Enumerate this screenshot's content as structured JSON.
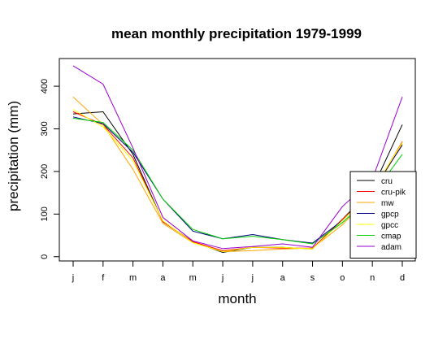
{
  "chart_data": {
    "type": "line",
    "title": "mean monthly precipitation 1979-1999",
    "xlabel": "month",
    "ylabel": "precipitation (mm)",
    "categories": [
      "j",
      "f",
      "m",
      "a",
      "m",
      "j",
      "j",
      "a",
      "s",
      "o",
      "n",
      "d"
    ],
    "ylim": [
      -10,
      465
    ],
    "yticks": [
      0,
      100,
      200,
      300,
      400
    ],
    "grid": false,
    "legend_position": "bottom-right",
    "series": [
      {
        "name": "cru",
        "color": "#000000",
        "values": [
          335,
          340,
          240,
          82,
          35,
          10,
          22,
          22,
          18,
          88,
          160,
          310
        ]
      },
      {
        "name": "cru-pik",
        "color": "#ff0000",
        "values": [
          340,
          310,
          232,
          82,
          35,
          14,
          22,
          20,
          20,
          88,
          152,
          270
        ]
      },
      {
        "name": "mw",
        "color": "#ffa500",
        "values": [
          375,
          310,
          205,
          78,
          33,
          12,
          14,
          18,
          20,
          75,
          148,
          265
        ]
      },
      {
        "name": "gpcp",
        "color": "#000080",
        "values": [
          328,
          312,
          245,
          135,
          60,
          42,
          52,
          40,
          32,
          85,
          155,
          262
        ]
      },
      {
        "name": "gpcc",
        "color": "#ffff00",
        "values": [
          345,
          305,
          225,
          84,
          33,
          12,
          22,
          22,
          18,
          85,
          155,
          268
        ]
      },
      {
        "name": "cmap",
        "color": "#00d000",
        "values": [
          325,
          315,
          250,
          135,
          64,
          42,
          48,
          40,
          30,
          80,
          145,
          240
        ]
      },
      {
        "name": "adam",
        "color": "#9900cc",
        "values": [
          448,
          405,
          255,
          92,
          37,
          19,
          24,
          30,
          22,
          118,
          182,
          375
        ]
      }
    ]
  }
}
